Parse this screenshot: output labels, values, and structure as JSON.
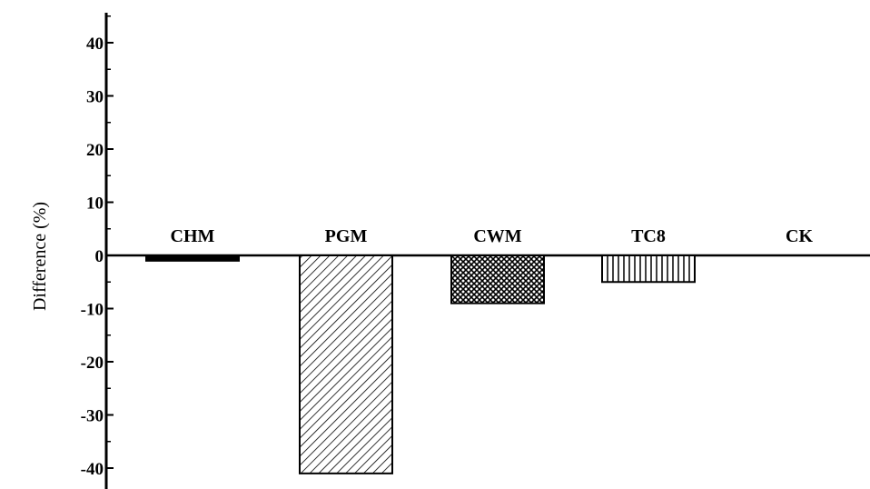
{
  "chart_data": {
    "type": "bar",
    "categories": [
      "CHM",
      "PGM",
      "CWM",
      "TC8",
      "CK"
    ],
    "values": [
      -1,
      -41,
      -9,
      -5,
      0
    ],
    "ylabel": "Difference (%)",
    "xlabel": "",
    "ylim": [
      -44,
      45
    ],
    "yticks": [
      40,
      30,
      20,
      10,
      0,
      -10,
      -20,
      -30,
      -40
    ],
    "ytick_labels": [
      "40",
      "30",
      "20",
      "10",
      "0",
      "-10",
      "-20",
      "-30",
      "-40"
    ],
    "fill_patterns": [
      "solid",
      "diagonal-hatch",
      "crosshatch",
      "vertical-lines",
      "none"
    ],
    "grid": false,
    "legend": "none"
  }
}
